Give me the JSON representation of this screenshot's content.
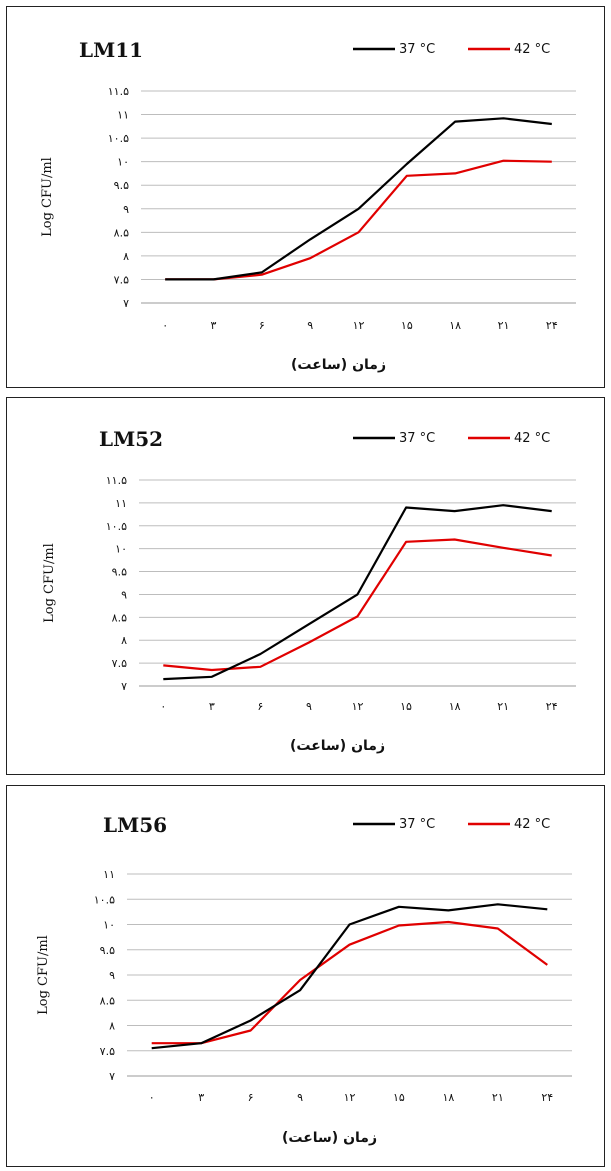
{
  "chart_data": [
    {
      "type": "line",
      "title": "LM11",
      "xlabel": "زمان (ساعت)",
      "ylabel": "Log CFU/ml",
      "x": [
        0,
        3,
        6,
        9,
        12,
        15,
        18,
        21,
        24
      ],
      "x_tick_labels": [
        "۰",
        "۳",
        "۶",
        "۹",
        "۱۲",
        "۱۵",
        "۱۸",
        "۲۱",
        "۲۴"
      ],
      "y_ticks": [
        7,
        7.5,
        8,
        8.5,
        9,
        9.5,
        10,
        10.5,
        11,
        11.5
      ],
      "y_tick_labels": [
        "۷",
        "۷.۵",
        "۸",
        "۸.۵",
        "۹",
        "۹.۵",
        "۱۰",
        "۱۰.۵",
        "۱۱",
        "۱۱.۵"
      ],
      "ylim": [
        7,
        11.5
      ],
      "grid": true,
      "legend_position": "top-right",
      "series": [
        {
          "name": "37 °C",
          "color": "#000000",
          "values": [
            7.5,
            7.5,
            7.65,
            8.35,
            9.0,
            9.95,
            10.85,
            10.92,
            10.8
          ]
        },
        {
          "name": "42 °C",
          "color": "#e00000",
          "values": [
            7.5,
            7.5,
            7.6,
            7.95,
            8.5,
            9.7,
            9.75,
            10.02,
            10.0
          ]
        }
      ]
    },
    {
      "type": "line",
      "title": "LM52",
      "xlabel": "زمان (ساعت)",
      "ylabel": "Log CFU/ml",
      "x": [
        0,
        3,
        6,
        9,
        12,
        15,
        18,
        21,
        24
      ],
      "x_tick_labels": [
        "۰",
        "۳",
        "۶",
        "۹",
        "۱۲",
        "۱۵",
        "۱۸",
        "۲۱",
        "۲۴"
      ],
      "y_ticks": [
        7,
        7.5,
        8,
        8.5,
        9,
        9.5,
        10,
        10.5,
        11,
        11.5
      ],
      "y_tick_labels": [
        "۷",
        "۷.۵",
        "۸",
        "۸.۵",
        "۹",
        "۹.۵",
        "۱۰",
        "۱۰.۵",
        "۱۱",
        "۱۱.۵"
      ],
      "ylim": [
        7,
        11.5
      ],
      "grid": true,
      "legend_position": "top-right",
      "series": [
        {
          "name": "37 °C",
          "color": "#000000",
          "values": [
            7.15,
            7.2,
            7.7,
            8.35,
            9.0,
            10.9,
            10.82,
            10.95,
            10.82
          ]
        },
        {
          "name": "42 °C",
          "color": "#e00000",
          "values": [
            7.45,
            7.35,
            7.42,
            7.95,
            8.52,
            10.15,
            10.2,
            10.02,
            9.85
          ]
        }
      ]
    },
    {
      "type": "line",
      "title": "LM56",
      "xlabel": "زمان (ساعت)",
      "ylabel": "Log CFU/ml",
      "x": [
        0,
        3,
        6,
        9,
        12,
        15,
        18,
        21,
        24
      ],
      "x_tick_labels": [
        "۰",
        "۳",
        "۶",
        "۹",
        "۱۲",
        "۱۵",
        "۱۸",
        "۲۱",
        "۲۴"
      ],
      "y_ticks": [
        7,
        7.5,
        8,
        8.5,
        9,
        9.5,
        10,
        10.5,
        11
      ],
      "y_tick_labels": [
        "۷",
        "۷.۵",
        "۸",
        "۸.۵",
        "۹",
        "۹.۵",
        "۱۰",
        "۱۰.۵",
        "۱۱"
      ],
      "ylim": [
        7,
        11
      ],
      "grid": true,
      "legend_position": "top-right",
      "series": [
        {
          "name": "37 °C",
          "color": "#000000",
          "values": [
            7.55,
            7.65,
            8.1,
            8.7,
            10.0,
            10.35,
            10.28,
            10.4,
            10.3
          ]
        },
        {
          "name": "42 °C",
          "color": "#e00000",
          "values": [
            7.65,
            7.65,
            7.9,
            8.9,
            9.6,
            9.98,
            10.05,
            9.92,
            9.2
          ]
        }
      ]
    }
  ]
}
